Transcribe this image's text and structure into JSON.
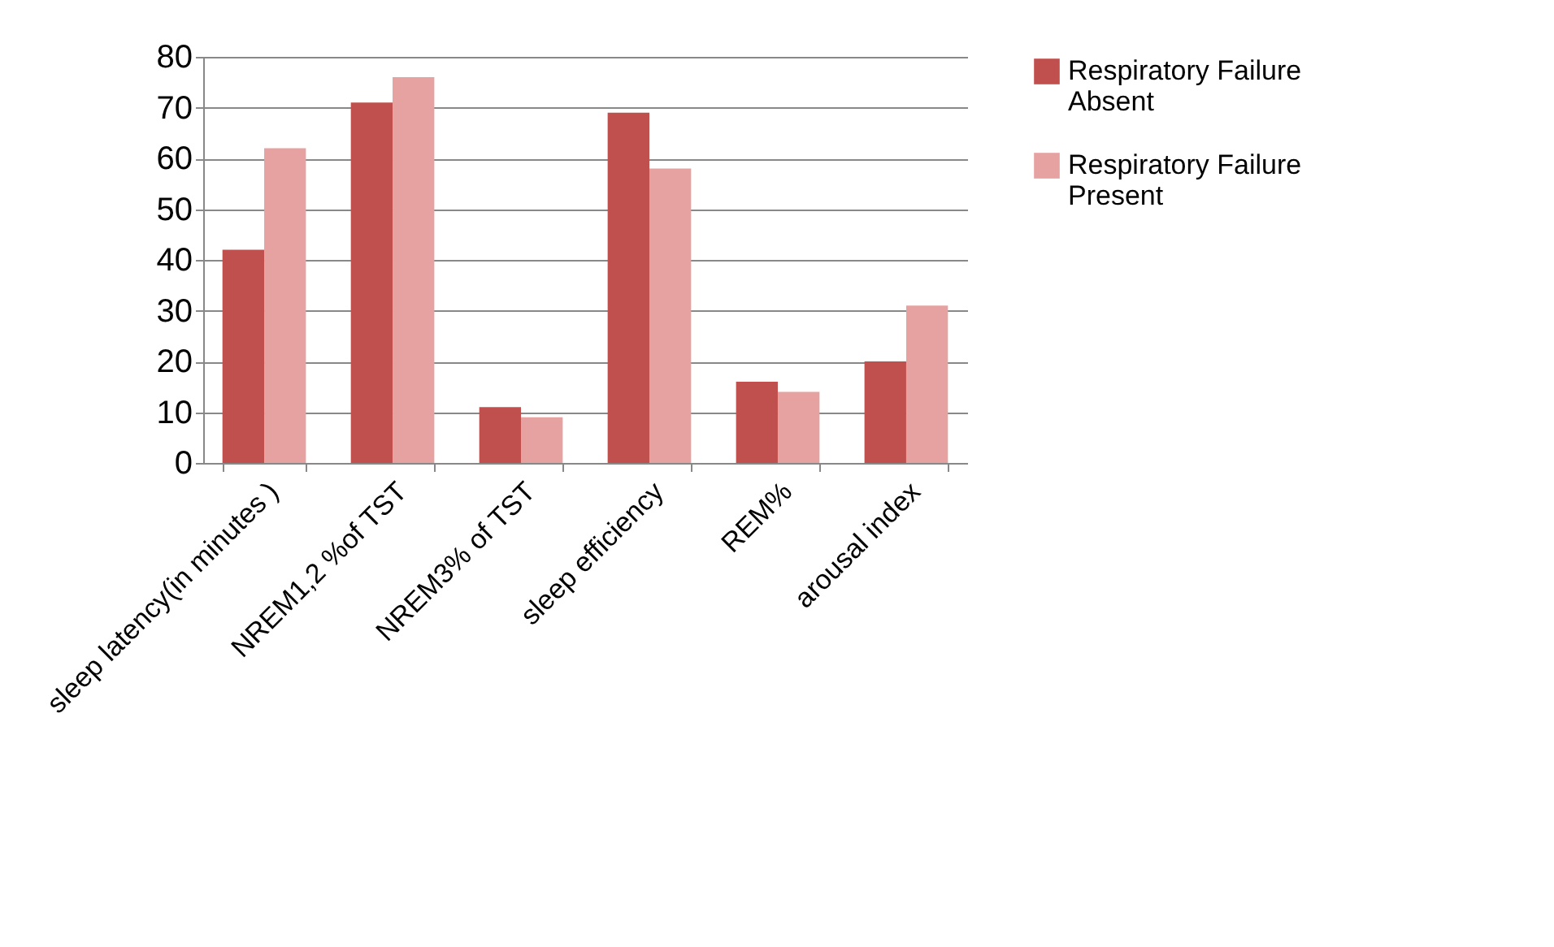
{
  "chart_data": {
    "type": "bar",
    "categories": [
      "sleep latency(in minutes )",
      "NREM1,2 %of TST",
      "NREM3% of TST",
      "sleep efficiency",
      "REM%",
      "arousal index"
    ],
    "series": [
      {
        "name": "Respiratory Failure Absent",
        "color": "#c0504d",
        "values": [
          42,
          71,
          11,
          69,
          16,
          20
        ]
      },
      {
        "name": "Respiratory Failure Present",
        "color": "#e6a1a1",
        "values": [
          62,
          76,
          9,
          58,
          14,
          31
        ]
      }
    ],
    "ylim": [
      0,
      80
    ],
    "yticks": [
      0,
      10,
      20,
      30,
      40,
      50,
      60,
      70,
      80
    ],
    "grid": "y",
    "legend": "right"
  }
}
